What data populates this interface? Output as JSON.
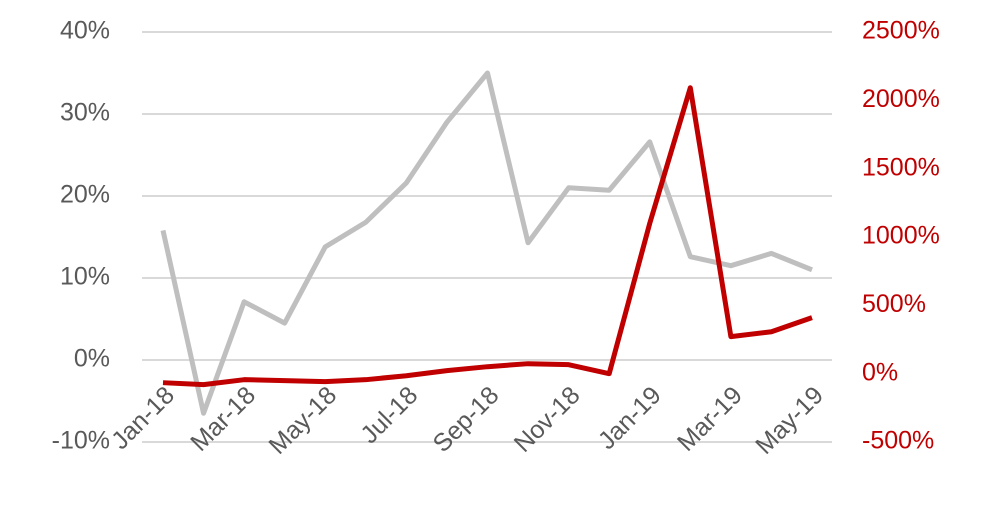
{
  "chart_data": {
    "type": "line",
    "categories": [
      "Jan-18",
      null,
      "Mar-18",
      null,
      "May-18",
      null,
      "Jul-18",
      null,
      "Sep-18",
      null,
      "Nov-18",
      null,
      "Jan-19",
      null,
      "Mar-19",
      null,
      "May-19"
    ],
    "series": [
      {
        "color": "#bfbfbf",
        "values": [
          15.8,
          -6.5,
          7.1,
          4.5,
          13.8,
          16.8,
          21.6,
          29,
          35,
          14.3,
          21,
          20.7,
          26.6,
          12.6,
          11.5,
          13,
          11
        ]
      },
      {
        "color": "#c00000",
        "axis": "y2",
        "values": [
          -66,
          -80,
          -44,
          -51,
          -58,
          -44,
          -15,
          22,
          51,
          73,
          66,
          0,
          1100,
          2092,
          271,
          307,
          410
        ]
      }
    ],
    "ylim": [
      -10,
      40
    ],
    "yticks": [
      {
        "value": -10,
        "label": "-10%"
      },
      {
        "value": 0,
        "label": "0%"
      },
      {
        "value": 10,
        "label": "10%"
      },
      {
        "value": 20,
        "label": "20%"
      },
      {
        "value": 30,
        "label": "30%"
      },
      {
        "value": 40,
        "label": "40%"
      }
    ],
    "y2lim": [
      -500,
      2500
    ],
    "y2ticks": [
      {
        "value": -500,
        "label": "-500%"
      },
      {
        "value": 0,
        "label": "0%"
      },
      {
        "value": 500,
        "label": "500%"
      },
      {
        "value": 1000,
        "label": "1000%"
      },
      {
        "value": 1500,
        "label": "1500%"
      },
      {
        "value": 2000,
        "label": "2000%"
      },
      {
        "value": 2500,
        "label": "2500%"
      }
    ],
    "y2color": "#c00000",
    "grid": true
  }
}
